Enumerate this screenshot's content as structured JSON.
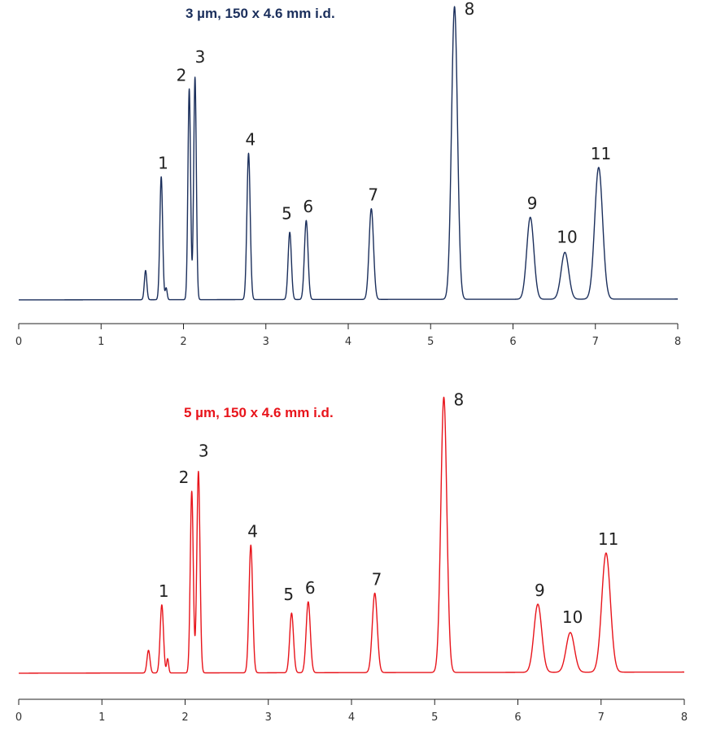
{
  "chart_data": [
    {
      "type": "line",
      "title": "3 µm, 150 x 4.6 mm i.d.",
      "title_color": "#1b2f5c",
      "line_color": "#1b2f5c",
      "xlabel": "",
      "ylabel": "",
      "xlim": [
        0,
        8
      ],
      "ylim": [
        0,
        100
      ],
      "x_ticks": [
        "0",
        "1",
        "2",
        "3",
        "4",
        "5",
        "6",
        "7",
        "8"
      ],
      "grid": false,
      "baseline": 0.6,
      "drift": 0.3,
      "peaks": [
        {
          "label": "",
          "x": 1.54,
          "height": 10,
          "width": 0.015
        },
        {
          "label": "1",
          "x": 1.73,
          "height": 42,
          "width": 0.017
        },
        {
          "label": "",
          "x": 1.79,
          "height": 4,
          "width": 0.012
        },
        {
          "label": "2",
          "x": 2.07,
          "height": 72,
          "width": 0.016
        },
        {
          "label": "3",
          "x": 2.14,
          "height": 76,
          "width": 0.016
        },
        {
          "label": "4",
          "x": 2.79,
          "height": 50,
          "width": 0.02
        },
        {
          "label": "5",
          "x": 3.29,
          "height": 23,
          "width": 0.02
        },
        {
          "label": "6",
          "x": 3.49,
          "height": 27,
          "width": 0.022
        },
        {
          "label": "7",
          "x": 4.28,
          "height": 31,
          "width": 0.027
        },
        {
          "label": "8",
          "x": 5.29,
          "height": 100,
          "width": 0.036
        },
        {
          "label": "9",
          "x": 6.21,
          "height": 28,
          "width": 0.043
        },
        {
          "label": "10",
          "x": 6.63,
          "height": 16,
          "width": 0.046
        },
        {
          "label": "11",
          "x": 7.04,
          "height": 45,
          "width": 0.048
        }
      ]
    },
    {
      "type": "line",
      "title": "5 µm, 150 x 4.6 mm i.d.",
      "title_color": "#e8141b",
      "line_color": "#e8141b",
      "xlabel": "",
      "ylabel": "",
      "xlim": [
        0,
        8
      ],
      "ylim": [
        0,
        100
      ],
      "x_ticks": [
        "0",
        "1",
        "2",
        "3",
        "4",
        "5",
        "6",
        "7",
        "8"
      ],
      "grid": false,
      "baseline": 0.6,
      "drift": 0.4,
      "peaks": [
        {
          "label": "",
          "x": 1.56,
          "height": 8,
          "width": 0.018
        },
        {
          "label": "1",
          "x": 1.72,
          "height": 24,
          "width": 0.02
        },
        {
          "label": "",
          "x": 1.79,
          "height": 5,
          "width": 0.012
        },
        {
          "label": "2",
          "x": 2.08,
          "height": 64,
          "width": 0.018
        },
        {
          "label": "3",
          "x": 2.16,
          "height": 71,
          "width": 0.019
        },
        {
          "label": "4",
          "x": 2.79,
          "height": 45,
          "width": 0.022
        },
        {
          "label": "5",
          "x": 3.28,
          "height": 21,
          "width": 0.023
        },
        {
          "label": "6",
          "x": 3.48,
          "height": 25,
          "width": 0.025
        },
        {
          "label": "7",
          "x": 4.28,
          "height": 28,
          "width": 0.03
        },
        {
          "label": "8",
          "x": 5.11,
          "height": 97,
          "width": 0.036
        },
        {
          "label": "9",
          "x": 6.24,
          "height": 24,
          "width": 0.047
        },
        {
          "label": "10",
          "x": 6.63,
          "height": 14,
          "width": 0.05
        },
        {
          "label": "11",
          "x": 7.06,
          "height": 42,
          "width": 0.052
        }
      ]
    }
  ]
}
